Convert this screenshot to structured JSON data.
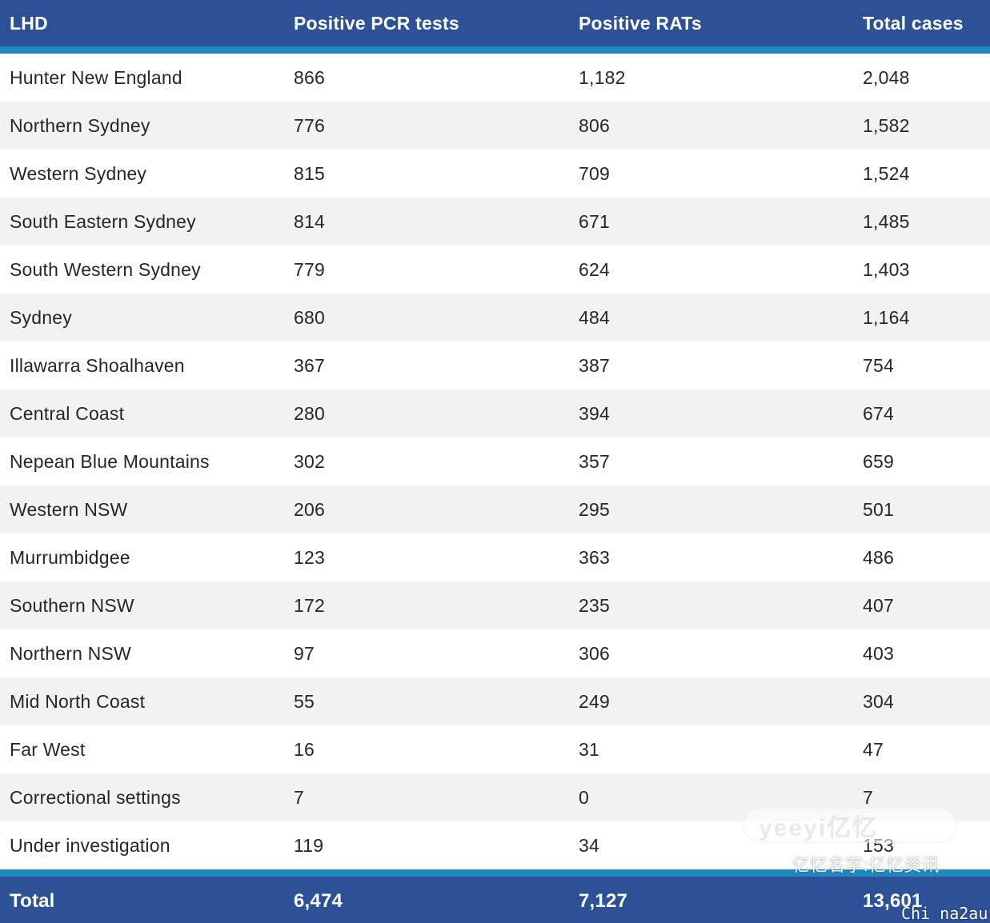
{
  "table": {
    "headers": [
      "LHD",
      "Positive PCR tests",
      "Positive RATs",
      "Total cases"
    ],
    "rows": [
      [
        "Hunter New England",
        "866",
        "1,182",
        "2,048"
      ],
      [
        "Northern Sydney",
        "776",
        "806",
        "1,582"
      ],
      [
        "Western Sydney",
        "815",
        "709",
        "1,524"
      ],
      [
        "South Eastern Sydney",
        "814",
        "671",
        "1,485"
      ],
      [
        "South Western Sydney",
        "779",
        "624",
        "1,403"
      ],
      [
        "Sydney",
        "680",
        "484",
        "1,164"
      ],
      [
        "Illawarra Shoalhaven",
        "367",
        "387",
        "754"
      ],
      [
        "Central Coast",
        "280",
        "394",
        "674"
      ],
      [
        "Nepean Blue Mountains",
        "302",
        "357",
        "659"
      ],
      [
        "Western NSW",
        "206",
        "295",
        "501"
      ],
      [
        "Murrumbidgee",
        "123",
        "363",
        "486"
      ],
      [
        "Southern NSW",
        "172",
        "235",
        "407"
      ],
      [
        "Northern NSW",
        "97",
        "306",
        "403"
      ],
      [
        "Mid North Coast",
        "55",
        "249",
        "304"
      ],
      [
        "Far West",
        "16",
        "31",
        "47"
      ],
      [
        "Correctional settings",
        "7",
        "0",
        "7"
      ],
      [
        "Under investigation",
        "119",
        "34",
        "153"
      ]
    ],
    "footer": [
      "Total",
      "6,474",
      "7,127",
      "13,601"
    ]
  },
  "watermark": {
    "brand": "yeeyi亿忆",
    "chinese": "亿忆名字:亿忆资讯",
    "pinyin": "Chi na2au"
  },
  "colors": {
    "header_bg": "#2d5196",
    "accent_stripe": "#1d89bf",
    "row_alt_bg": "#f2f2f2",
    "row_bg": "#ffffff"
  }
}
